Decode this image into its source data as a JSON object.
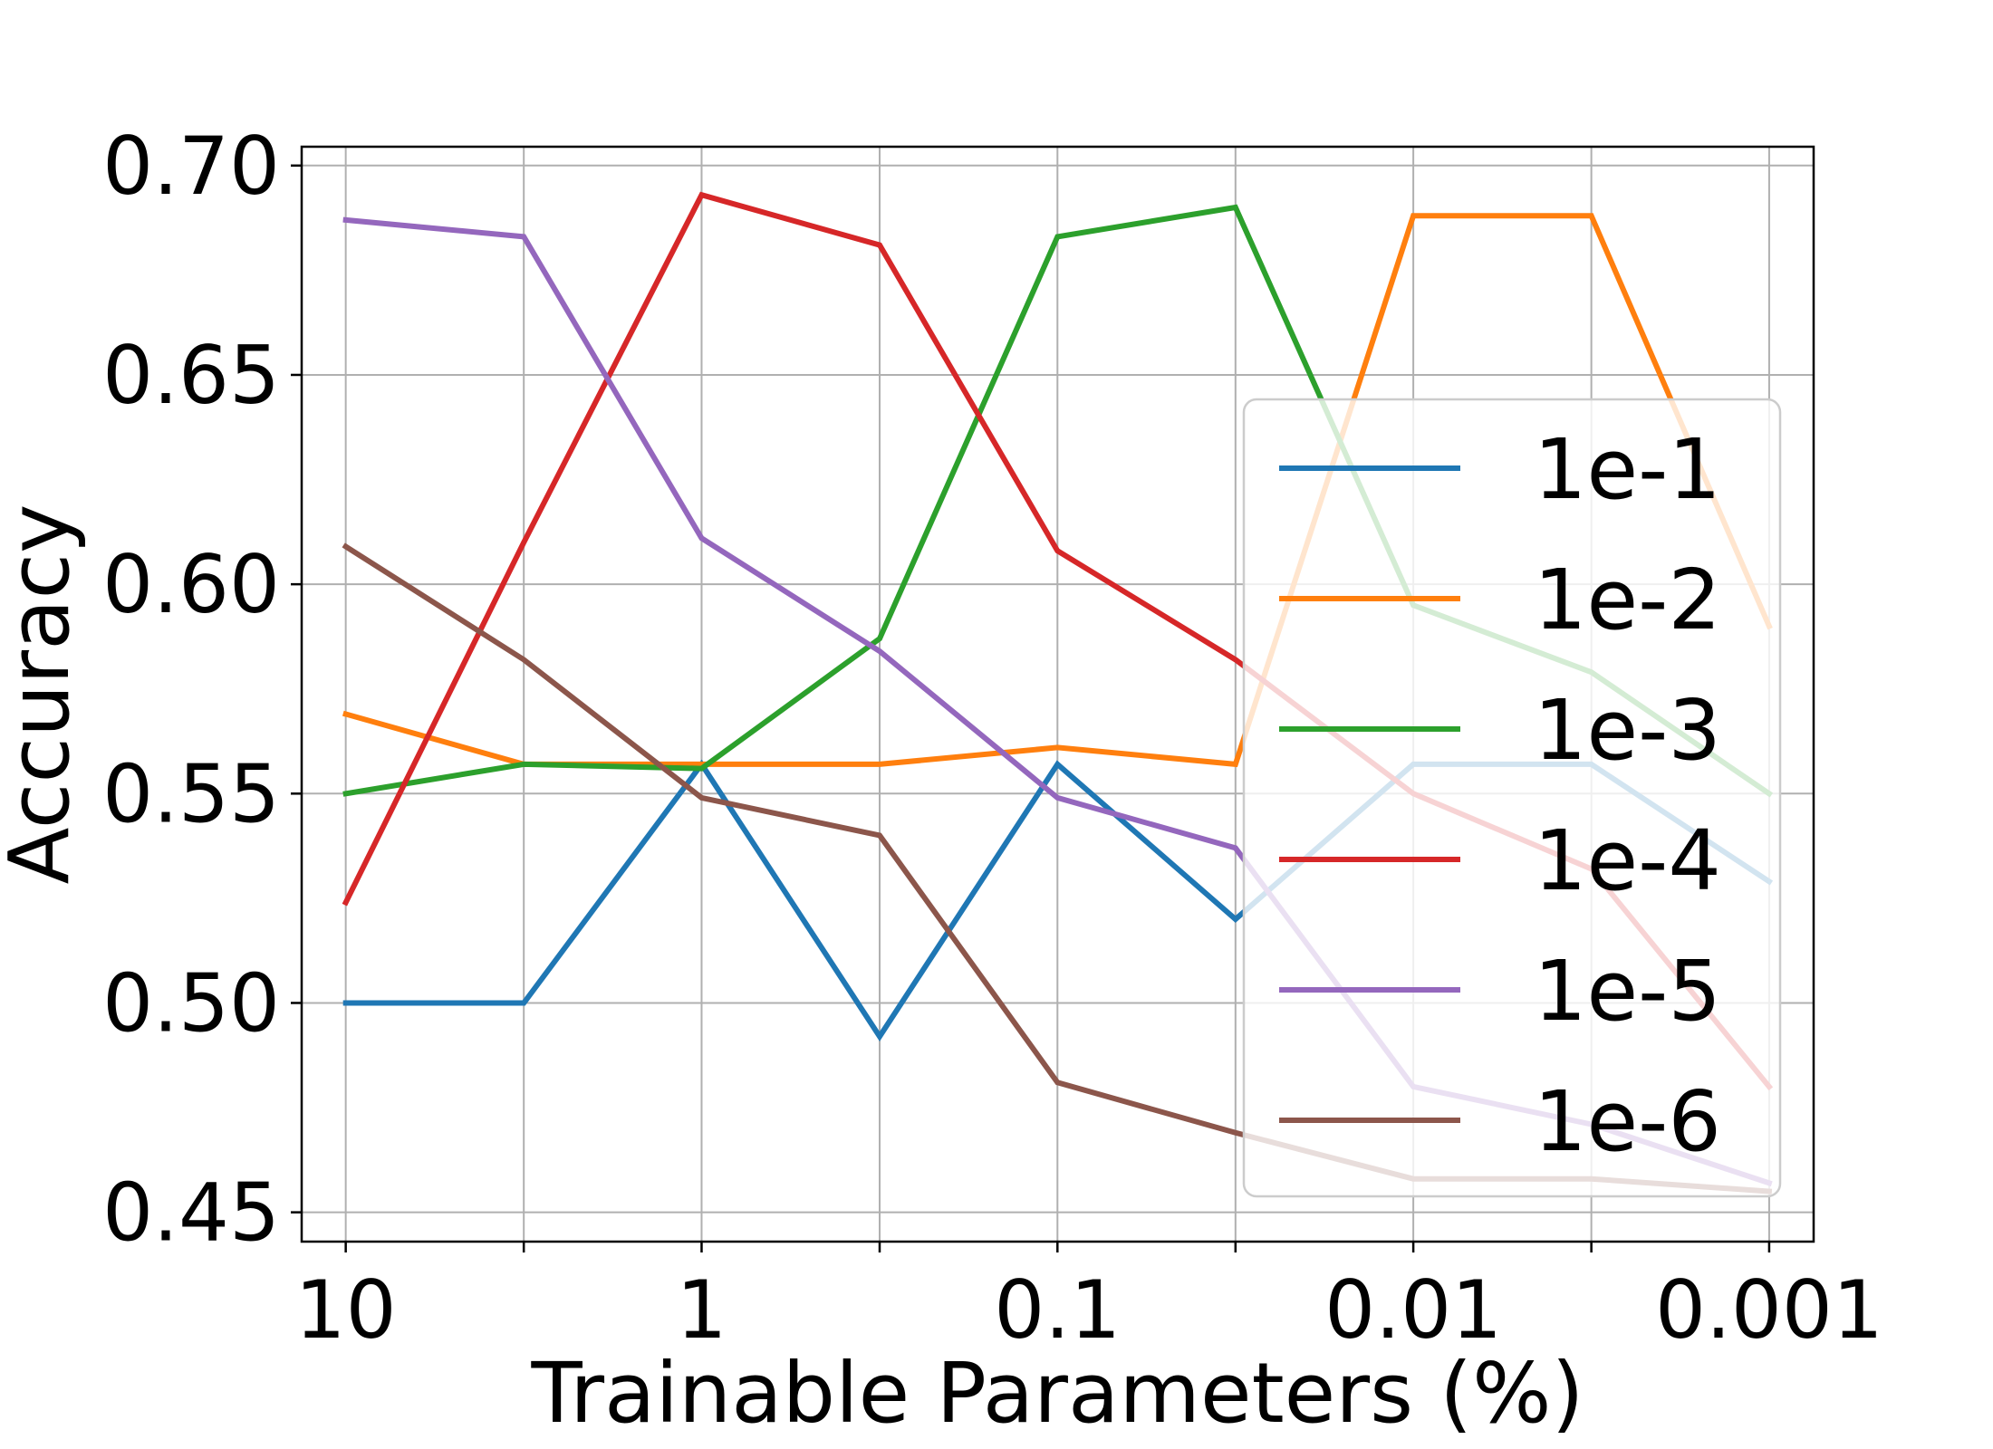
{
  "chart_data": {
    "type": "line",
    "title": "",
    "xlabel": "Trainable Parameters (%)",
    "ylabel": "Accuracy",
    "x_scale": "log",
    "x_reversed": true,
    "xlim": [
      13.3,
      0.00075
    ],
    "ylim": [
      0.443,
      0.7045
    ],
    "grid": true,
    "legend_position": "center-right",
    "x_ticks": [
      {
        "value": 10,
        "label": "10"
      },
      {
        "value": 1,
        "label": "1"
      },
      {
        "value": 0.1,
        "label": "0.1"
      },
      {
        "value": 0.01,
        "label": "0.01"
      },
      {
        "value": 0.001,
        "label": "0.001"
      }
    ],
    "x_minor_ticks": [
      3.16,
      0.316,
      0.0316,
      0.00316
    ],
    "y_ticks": [
      {
        "value": 0.45,
        "label": "0.45"
      },
      {
        "value": 0.5,
        "label": "0.50"
      },
      {
        "value": 0.55,
        "label": "0.55"
      },
      {
        "value": 0.6,
        "label": "0.60"
      },
      {
        "value": 0.65,
        "label": "0.65"
      },
      {
        "value": 0.7,
        "label": "0.70"
      }
    ],
    "x": [
      10,
      3.16,
      1,
      0.316,
      0.1,
      0.0316,
      0.01,
      0.00316,
      0.001
    ],
    "series": [
      {
        "name": "1e-1",
        "color": "#1f77b4",
        "values": [
          0.5,
          0.5,
          0.557,
          0.492,
          0.557,
          0.52,
          0.557,
          0.557,
          0.529
        ]
      },
      {
        "name": "1e-2",
        "color": "#ff7f0e",
        "values": [
          0.569,
          0.557,
          0.557,
          0.557,
          0.561,
          0.557,
          0.688,
          0.688,
          0.59
        ]
      },
      {
        "name": "1e-3",
        "color": "#2ca02c",
        "values": [
          0.55,
          0.557,
          0.556,
          0.587,
          0.683,
          0.69,
          0.595,
          0.579,
          0.55
        ]
      },
      {
        "name": "1e-4",
        "color": "#d62728",
        "values": [
          0.524,
          0.61,
          0.693,
          0.681,
          0.608,
          0.582,
          0.55,
          0.532,
          0.48
        ]
      },
      {
        "name": "1e-5",
        "color": "#9467bd",
        "values": [
          0.687,
          0.683,
          0.611,
          0.584,
          0.549,
          0.537,
          0.48,
          0.471,
          0.457
        ]
      },
      {
        "name": "1e-6",
        "color": "#8c564b",
        "values": [
          0.609,
          0.582,
          0.549,
          0.54,
          0.481,
          0.469,
          0.458,
          0.458,
          0.455
        ]
      }
    ]
  }
}
